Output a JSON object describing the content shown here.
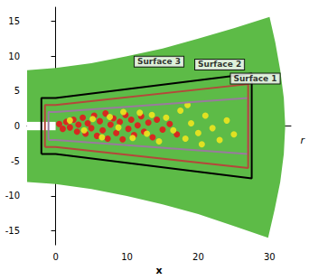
{
  "chart_data": {
    "type": "contour",
    "x_label": "x",
    "y_label": "r",
    "xlim": [
      -4,
      33
    ],
    "ylim": [
      -17,
      17
    ],
    "xticks": [
      0,
      10,
      20,
      30
    ],
    "yticks": [
      -15,
      -10,
      -5,
      0,
      5,
      10,
      15
    ],
    "grid": false,
    "domain": {
      "color": "#5dbb47",
      "points": [
        [
          -4,
          8
        ],
        [
          0,
          8.3
        ],
        [
          5,
          9
        ],
        [
          10,
          10
        ],
        [
          15,
          11.1
        ],
        [
          20,
          12.5
        ],
        [
          25,
          14
        ],
        [
          30,
          15.6
        ],
        [
          30.8,
          12
        ],
        [
          31.5,
          8
        ],
        [
          32,
          4
        ],
        [
          32.2,
          0
        ],
        [
          32,
          -4
        ],
        [
          31.5,
          -8
        ],
        [
          30.7,
          -12
        ],
        [
          29.8,
          -16
        ],
        [
          25,
          -14.3
        ],
        [
          20,
          -12.6
        ],
        [
          15,
          -11.2
        ],
        [
          10,
          -10
        ],
        [
          5,
          -9
        ],
        [
          0,
          -8.3
        ],
        [
          -4,
          -8
        ]
      ]
    },
    "nozzle": {
      "color": "#ffffff",
      "points": [
        [
          -4,
          0.6
        ],
        [
          0,
          0.6
        ],
        [
          0,
          -0.6
        ],
        [
          -4,
          -0.6
        ]
      ]
    },
    "structures": [
      {
        "color": "#e3191c",
        "points": [
          [
            0.5,
            0.3
          ],
          [
            1,
            -0.4
          ],
          [
            1.5,
            0.6
          ],
          [
            2,
            -0.2
          ],
          [
            2.5,
            0.9
          ],
          [
            3,
            -0.8
          ],
          [
            3.2,
            0.2
          ],
          [
            3.8,
            1.2
          ],
          [
            4.2,
            -1.1
          ],
          [
            4.5,
            0.4
          ],
          [
            5,
            -0.3
          ],
          [
            5.4,
            1.5
          ],
          [
            5.8,
            -1.4
          ],
          [
            6.2,
            0.7
          ],
          [
            6.6,
            -0.6
          ],
          [
            7,
            1.8
          ],
          [
            7.3,
            -1.8
          ],
          [
            7.7,
            0.2
          ],
          [
            8.1,
            1.1
          ],
          [
            8.5,
            -1
          ],
          [
            9,
            0.6
          ],
          [
            9.4,
            -1.9
          ],
          [
            9.8,
            1.6
          ],
          [
            10.2,
            -0.4
          ],
          [
            10.6,
            0.9
          ],
          [
            11,
            -1.3
          ],
          [
            11.5,
            0.1
          ],
          [
            12,
            1.4
          ],
          [
            12.4,
            -0.8
          ],
          [
            13,
            0.5
          ],
          [
            13.6,
            -1.6
          ],
          [
            14.2,
            0.9
          ],
          [
            15,
            -0.5
          ],
          [
            16,
            0.3
          ],
          [
            17,
            -1.2
          ]
        ]
      },
      {
        "color": "#eee61e",
        "points": [
          [
            2,
            0.8
          ],
          [
            4,
            -0.6
          ],
          [
            5.2,
            1
          ],
          [
            6.5,
            -1.6
          ],
          [
            7.6,
            1.3
          ],
          [
            8.8,
            -0.2
          ],
          [
            9.5,
            2
          ],
          [
            10.8,
            -1.7
          ],
          [
            11.8,
            1.9
          ],
          [
            12.8,
            -1.1
          ],
          [
            13.5,
            1.6
          ],
          [
            14.5,
            -2.2
          ],
          [
            15.5,
            1.2
          ],
          [
            16.5,
            -0.6
          ],
          [
            17.5,
            2.2
          ],
          [
            18.2,
            -1.8
          ],
          [
            19,
            0.4
          ],
          [
            20,
            -1
          ],
          [
            21,
            1.5
          ],
          [
            22,
            -0.3
          ],
          [
            23,
            -2
          ],
          [
            24,
            0.8
          ],
          [
            25,
            -1.2
          ],
          [
            18.5,
            3
          ],
          [
            20.5,
            -2.6
          ]
        ]
      }
    ],
    "series": [
      {
        "name": "Surface 1",
        "color": "#9a7a9e",
        "label_at": [
          28,
          6.8
        ],
        "points": [
          [
            -1,
            -2
          ],
          [
            -1,
            2
          ],
          [
            0,
            2
          ],
          [
            27,
            4
          ],
          [
            27,
            -4
          ],
          [
            0,
            -2
          ],
          [
            -1,
            -2
          ]
        ]
      },
      {
        "name": "Surface 2",
        "color": "#b5473a",
        "label_at": [
          23,
          8.8
        ],
        "points": [
          [
            -1.5,
            -3
          ],
          [
            -1.5,
            3
          ],
          [
            0,
            3
          ],
          [
            27,
            6
          ],
          [
            27,
            -6
          ],
          [
            0,
            -3
          ],
          [
            -1.5,
            -3
          ]
        ]
      },
      {
        "name": "Surface 3",
        "color": "#000000",
        "label_at": [
          14.5,
          9.2
        ],
        "points": [
          [
            -2,
            -4
          ],
          [
            -2,
            4
          ],
          [
            0,
            4
          ],
          [
            27.5,
            7.5
          ],
          [
            27.5,
            -7.5
          ],
          [
            0,
            -4
          ],
          [
            -2,
            -4
          ]
        ]
      }
    ]
  }
}
